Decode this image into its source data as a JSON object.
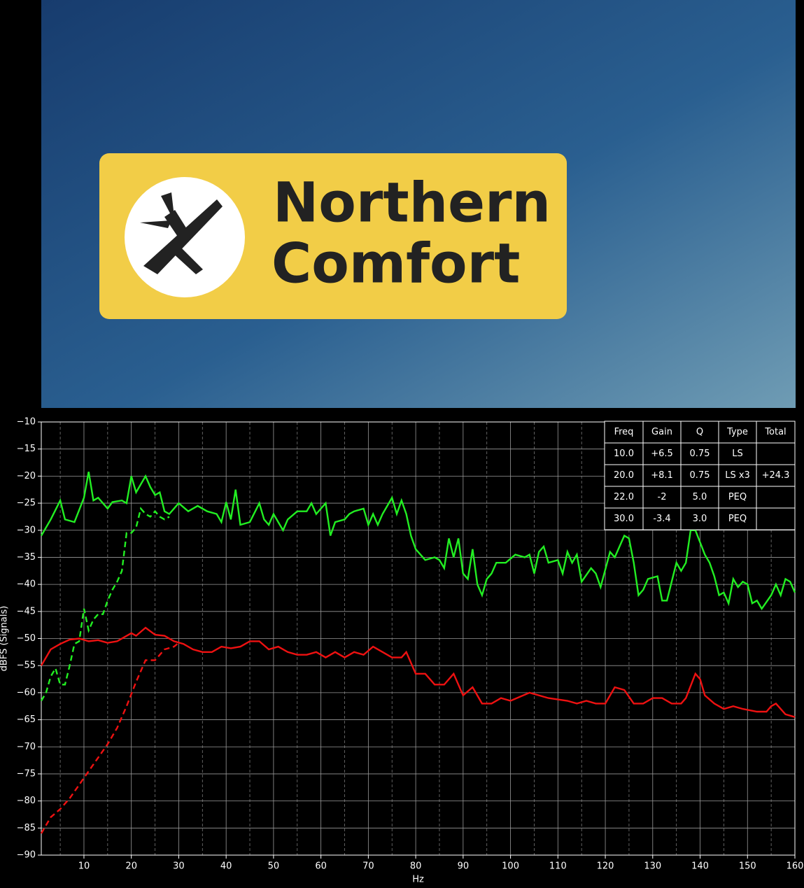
{
  "image": {
    "text": [
      "Northern",
      "Comfort"
    ]
  },
  "chart_data": {
    "type": "line",
    "xlabel": "Hz",
    "ylabel": "dBFS (Signals)",
    "xlim": [
      1,
      160
    ],
    "ylim": [
      -90,
      -10
    ],
    "xticks": [
      10,
      20,
      30,
      40,
      50,
      60,
      70,
      80,
      90,
      100,
      110,
      120,
      130,
      140,
      150,
      160
    ],
    "xminorticks": [
      5,
      15,
      25,
      35,
      45,
      55,
      65,
      75,
      85,
      95,
      105,
      115,
      125,
      135,
      145,
      155
    ],
    "yticks": [
      {
        "value": -10,
        "label": "−10"
      },
      {
        "value": -15,
        "label": "−15"
      },
      {
        "value": -20,
        "label": "−20"
      },
      {
        "value": -25,
        "label": "−25"
      },
      {
        "value": -30,
        "label": "−30"
      },
      {
        "value": -35,
        "label": "−35"
      },
      {
        "value": -40,
        "label": "−40"
      },
      {
        "value": -45,
        "label": "−45"
      },
      {
        "value": -50,
        "label": "−50"
      },
      {
        "value": -55,
        "label": "−55"
      },
      {
        "value": -60,
        "label": "−60"
      },
      {
        "value": -65,
        "label": "−65"
      },
      {
        "value": -70,
        "label": "−70"
      },
      {
        "value": -75,
        "label": "−75"
      },
      {
        "value": -80,
        "label": "−80"
      },
      {
        "value": -85,
        "label": "−85"
      },
      {
        "value": -90,
        "label": "−90"
      }
    ],
    "grid": true,
    "series": [
      {
        "color": "#22ee22",
        "linestyle": "solid",
        "x": [
          1,
          3,
          5,
          6,
          8,
          10,
          11,
          12,
          13,
          15,
          16,
          18,
          19,
          20,
          21,
          23,
          24,
          25,
          26,
          27,
          28,
          30,
          32,
          34,
          36,
          38,
          39,
          40,
          41,
          42,
          43,
          45,
          47,
          48,
          49,
          50,
          52,
          53,
          55,
          57,
          58,
          59,
          61,
          62,
          63,
          65,
          66,
          67,
          69,
          70,
          71,
          72,
          73,
          74,
          75,
          76,
          77,
          78,
          79,
          80,
          82,
          84,
          85,
          86,
          87,
          88,
          89,
          90,
          91,
          92,
          93,
          94,
          95,
          96,
          97,
          99,
          101,
          103,
          104,
          105,
          106,
          107,
          108,
          110,
          111,
          112,
          113,
          114,
          115,
          117,
          118,
          119,
          121,
          122,
          124,
          125,
          126,
          127,
          128,
          129,
          131,
          132,
          133,
          135,
          136,
          137,
          138,
          139,
          141,
          142,
          143,
          144,
          145,
          146,
          147,
          148,
          149,
          150,
          151,
          152,
          153,
          155,
          156,
          157,
          158,
          159,
          160
        ],
        "values": [
          -31,
          -28,
          -24.5,
          -28,
          -28.5,
          -24,
          -19.2,
          -24.5,
          -24,
          -26,
          -24.8,
          -24.5,
          -25,
          -20,
          -23,
          -20,
          -22,
          -23.5,
          -23,
          -26.5,
          -27,
          -25,
          -26.5,
          -25.5,
          -26.5,
          -27,
          -28.5,
          -24.8,
          -28,
          -22.5,
          -29,
          -28.5,
          -25,
          -28,
          -29,
          -27,
          -30,
          -28,
          -26.5,
          -26.5,
          -25,
          -27,
          -25,
          -31,
          -28.5,
          -28,
          -27,
          -26.5,
          -26,
          -29,
          -27,
          -29,
          -27,
          -25.5,
          -24,
          -27,
          -24.5,
          -27,
          -31,
          -33.5,
          -35.5,
          -35,
          -35.5,
          -37,
          -31.5,
          -35,
          -31.5,
          -38,
          -39,
          -33.5,
          -40,
          -42,
          -39,
          -38,
          -36,
          -36,
          -34.5,
          -35,
          -34.5,
          -38,
          -34,
          -33,
          -36,
          -35.5,
          -38,
          -34,
          -36,
          -34.5,
          -39.5,
          -37,
          -38,
          -40.5,
          -34,
          -35,
          -31,
          -31.5,
          -36,
          -42,
          -41,
          -39,
          -38.5,
          -43,
          -43,
          -36,
          -37.5,
          -36,
          -30,
          -30,
          -34.5,
          -36,
          -38.5,
          -42,
          -41.5,
          -43.5,
          -39,
          -40.5,
          -39.5,
          -40,
          -43.5,
          -43,
          -44.5,
          -42,
          -40,
          -42,
          -39,
          -39.5,
          -41.5
        ]
      },
      {
        "color": "#22ee22",
        "linestyle": "dashed",
        "x": [
          1,
          2,
          3,
          4,
          5,
          6,
          7,
          8,
          9,
          10,
          11,
          12,
          13,
          14,
          15,
          16,
          17,
          18,
          19,
          20,
          21,
          22,
          23,
          24,
          25,
          26,
          27,
          28
        ],
        "values": [
          -61.5,
          -60,
          -57,
          -55.5,
          -58.5,
          -58.5,
          -55,
          -51,
          -50.5,
          -44.5,
          -48.5,
          -46.5,
          -45.5,
          -45.5,
          -43,
          -41,
          -39.5,
          -37.5,
          -30.5,
          -30.5,
          -29.5,
          -26,
          -27,
          -27.5,
          -26.5,
          -27.5,
          -28,
          -27.5
        ]
      },
      {
        "color": "#ee1111",
        "linestyle": "solid",
        "x": [
          1,
          3,
          5,
          7,
          9,
          11,
          13,
          15,
          17,
          20,
          21,
          23,
          25,
          27,
          29,
          31,
          33,
          35,
          37,
          39,
          41,
          43,
          45,
          47,
          49,
          51,
          53,
          55,
          57,
          59,
          61,
          63,
          65,
          67,
          69,
          71,
          73,
          75,
          77,
          78,
          80,
          82,
          84,
          86,
          88,
          90,
          92,
          94,
          96,
          98,
          100,
          104,
          108,
          112,
          114,
          116,
          118,
          120,
          122,
          124,
          126,
          128,
          130,
          132,
          134,
          136,
          137,
          139,
          140,
          141,
          143,
          145,
          147,
          149,
          152,
          154,
          155,
          156,
          158,
          160
        ],
        "values": [
          -55,
          -52,
          -51,
          -50.2,
          -50,
          -50.5,
          -50.3,
          -50.8,
          -50.5,
          -49,
          -49.5,
          -48,
          -49.3,
          -49.5,
          -50.5,
          -51,
          -52,
          -52.5,
          -52.5,
          -51.5,
          -51.8,
          -51.5,
          -50.5,
          -50.5,
          -52,
          -51.5,
          -52.5,
          -53,
          -53,
          -52.5,
          -53.5,
          -52.5,
          -53.5,
          -52.5,
          -53,
          -51.5,
          -52.5,
          -53.5,
          -53.5,
          -52.5,
          -56.5,
          -56.5,
          -58.5,
          -58.5,
          -56.5,
          -60.5,
          -59,
          -62,
          -62,
          -61,
          -61.5,
          -60,
          -61,
          -61.5,
          -62,
          -61.5,
          -62,
          -62,
          -59,
          -59.5,
          -62,
          -62,
          -61,
          -61,
          -62,
          -62,
          -61,
          -56.5,
          -57.5,
          -60.5,
          -62,
          -63,
          -62.5,
          -63,
          -63.5,
          -63.5,
          -62.5,
          -62,
          -64,
          -64.5
        ]
      },
      {
        "color": "#ee1111",
        "linestyle": "dashed",
        "x": [
          1,
          3,
          5,
          7,
          9,
          11,
          13,
          15,
          17,
          19,
          21,
          23,
          25,
          27,
          29,
          30
        ],
        "values": [
          -86,
          -83,
          -81.5,
          -79.5,
          -77,
          -74.5,
          -72,
          -69.5,
          -66.5,
          -62.5,
          -58,
          -54,
          -54,
          -52,
          -51.5,
          -50.8
        ]
      }
    ]
  },
  "table": {
    "header": [
      "Freq",
      "Gain",
      "Q",
      "Type",
      "Total"
    ],
    "rows": [
      [
        "10.0",
        "+6.5",
        "0.75",
        "LS",
        ""
      ],
      [
        "20.0",
        "+8.1",
        "0.75",
        "LS x3",
        "+24.3"
      ],
      [
        "22.0",
        "-2",
        "5.0",
        "PEQ",
        ""
      ],
      [
        "30.0",
        "-3.4",
        "3.0",
        "PEQ",
        ""
      ]
    ]
  }
}
